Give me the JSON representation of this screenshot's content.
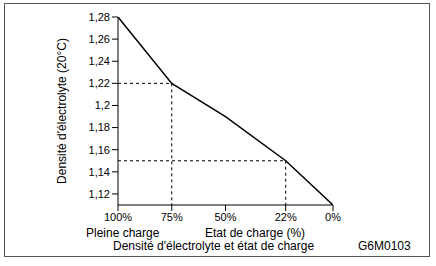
{
  "chart_data": {
    "type": "line",
    "title": "Densité d'électrolyte et état de charge",
    "x_label": "Etat de charge (%)",
    "y_label": "Densité d'électrolyte (20°C)",
    "annotations": [
      "Pleine charge",
      "G6M0103"
    ],
    "x": [
      100,
      75,
      50,
      22,
      0
    ],
    "values": [
      1.28,
      1.22,
      1.19,
      1.15,
      1.11
    ],
    "color": "#000000",
    "xlim": [
      100,
      0
    ],
    "xticks": [
      {
        "value": 100,
        "label": "100%"
      },
      {
        "value": 75,
        "label": "75%"
      },
      {
        "value": 50,
        "label": "50%"
      },
      {
        "value": 22,
        "label": "22%"
      },
      {
        "value": 0,
        "label": "0%"
      }
    ],
    "ylim": [
      1.11,
      1.28
    ],
    "yticks": [
      {
        "value": 1.12,
        "label": "1,12"
      },
      {
        "value": 1.14,
        "label": "1,14"
      },
      {
        "value": 1.16,
        "label": "1,16"
      },
      {
        "value": 1.18,
        "label": "1,18"
      },
      {
        "value": 1.2,
        "label": "1,2"
      },
      {
        "value": 1.22,
        "label": "1,22"
      },
      {
        "value": 1.24,
        "label": "1,24"
      },
      {
        "value": 1.26,
        "label": "1,26"
      },
      {
        "value": 1.28,
        "label": "1,28"
      }
    ],
    "reference_points": [
      {
        "x": 75,
        "y": 1.22
      },
      {
        "x": 22,
        "y": 1.15
      }
    ],
    "grid": false
  }
}
